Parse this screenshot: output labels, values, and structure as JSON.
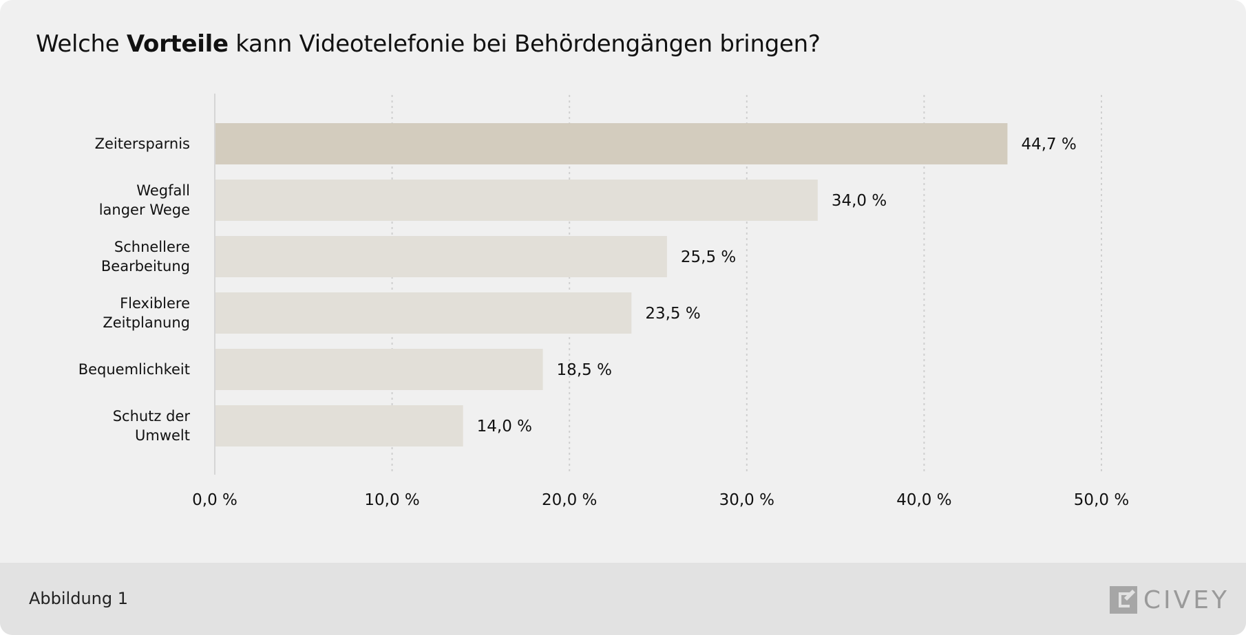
{
  "title": {
    "before": "Welche ",
    "bold": "Vorteile",
    "after": " kann Videotelefonie bei Behördengängen bringen?"
  },
  "footer": {
    "label": "Abbildung 1",
    "brand": "CIVEY",
    "brand_icon": "civey-logo-icon"
  },
  "colors": {
    "highlight_bar": "#d3ccbe",
    "bar": "#e2dfd8",
    "gridline": "#cfcfcf",
    "axis": "#d6d6d6",
    "text": "#111111",
    "background": "#f0f0f0",
    "footer_background": "#e2e2e2"
  },
  "chart_data": {
    "type": "bar",
    "orientation": "horizontal",
    "categories": [
      [
        "Zeitersparnis"
      ],
      [
        "Wegfall",
        "langer Wege"
      ],
      [
        "Schnellere",
        "Bearbeitung"
      ],
      [
        "Flexiblere",
        "Zeitplanung"
      ],
      [
        "Bequemlichkeit"
      ],
      [
        "Schutz der",
        "Umwelt"
      ]
    ],
    "values": [
      44.7,
      34.0,
      25.5,
      23.5,
      18.5,
      14.0
    ],
    "value_labels": [
      "44,7 %",
      "34,0 %",
      "25,5 %",
      "23,5 %",
      "18,5 %",
      "14,0 %"
    ],
    "highlight_index": 0,
    "xlim": [
      0,
      50
    ],
    "x_ticks": [
      0,
      10,
      20,
      30,
      40,
      50
    ],
    "x_tick_labels": [
      "0,0 %",
      "10,0 %",
      "20,0 %",
      "30,0 %",
      "40,0 %",
      "50,0 %"
    ],
    "grid": "vertical-dotted",
    "legend": "none"
  }
}
